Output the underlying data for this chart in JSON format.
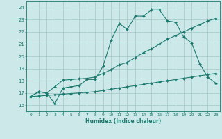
{
  "xlabel": "Humidex (Indice chaleur)",
  "bg_color": "#cce8e8",
  "grid_color": "#aacccc",
  "line_color": "#1a7a6e",
  "xlim": [
    -0.5,
    23.5
  ],
  "ylim": [
    15.5,
    24.5
  ],
  "xticks": [
    0,
    1,
    2,
    3,
    4,
    5,
    6,
    7,
    8,
    9,
    10,
    11,
    12,
    13,
    14,
    15,
    16,
    17,
    18,
    19,
    20,
    21,
    22,
    23
  ],
  "yticks": [
    16,
    17,
    18,
    19,
    20,
    21,
    22,
    23,
    24
  ],
  "line1_x": [
    0,
    1,
    2,
    3,
    4,
    5,
    6,
    7,
    8,
    9,
    10,
    11,
    12,
    13,
    14,
    15,
    16,
    17,
    18,
    19,
    20,
    21,
    22,
    23
  ],
  "line1_y": [
    16.7,
    17.1,
    17.0,
    16.1,
    17.4,
    17.5,
    17.6,
    18.1,
    18.1,
    19.2,
    21.3,
    22.7,
    22.2,
    23.3,
    23.3,
    23.8,
    23.8,
    22.9,
    22.8,
    21.6,
    21.1,
    19.4,
    18.3,
    17.8
  ],
  "line2_x": [
    0,
    1,
    2,
    3,
    4,
    5,
    6,
    7,
    8,
    9,
    10,
    11,
    12,
    13,
    14,
    15,
    16,
    17,
    18,
    19,
    20,
    21,
    22,
    23
  ],
  "line2_y": [
    16.7,
    17.1,
    17.0,
    17.5,
    18.05,
    18.1,
    18.15,
    18.2,
    18.3,
    18.6,
    18.9,
    19.3,
    19.5,
    19.9,
    20.3,
    20.6,
    21.0,
    21.4,
    21.7,
    22.0,
    22.3,
    22.6,
    22.9,
    23.1
  ],
  "line3_x": [
    0,
    1,
    2,
    3,
    4,
    5,
    6,
    7,
    8,
    9,
    10,
    11,
    12,
    13,
    14,
    15,
    16,
    17,
    18,
    19,
    20,
    21,
    22,
    23
  ],
  "line3_y": [
    16.7,
    16.75,
    16.8,
    16.85,
    16.9,
    16.95,
    17.0,
    17.05,
    17.1,
    17.2,
    17.3,
    17.4,
    17.5,
    17.6,
    17.7,
    17.8,
    17.9,
    18.0,
    18.1,
    18.2,
    18.3,
    18.4,
    18.5,
    18.6
  ]
}
